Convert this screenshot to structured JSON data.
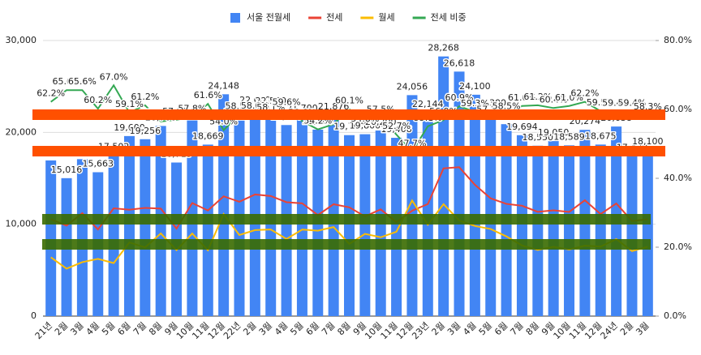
{
  "chart_data": {
    "type": "bar_line",
    "categories": [
      "21년",
      "2월",
      "3월",
      "4월",
      "5월",
      "6월",
      "7월",
      "8월",
      "9월",
      "10월",
      "11월",
      "12월",
      "22년",
      "2월",
      "3월",
      "4월",
      "5월",
      "6월",
      "7월",
      "8월",
      "9월",
      "10월",
      "11월",
      "12월",
      "23년",
      "2월",
      "3월",
      "4월",
      "5월",
      "6월",
      "7월",
      "8월",
      "9월",
      "10월",
      "11월",
      "12월",
      "24년",
      "2월",
      "3월"
    ],
    "series": [
      {
        "name": "서울 전월세",
        "type": "bar",
        "color": "#4285f4",
        "values": [
          16945,
          15016,
          17086,
          15663,
          17502,
          19600,
          19256,
          20700,
          16719,
          21299,
          18669,
          24148,
          21278,
          22600,
          22500,
          20800,
          21700,
          20300,
          21876,
          19700,
          19800,
          20200,
          19408,
          24056,
          22144,
          28268,
          26618,
          24100,
          22300,
          20896,
          19694,
          18550,
          19050,
          18589,
          20274,
          18675,
          20638,
          17430,
          18100
        ],
        "value_labels": [
          "16,945",
          "15,016",
          "17,086",
          "15,663",
          "17,502",
          "19,600",
          "19,256",
          "20,700",
          "16,719",
          "21,299",
          "18,669",
          "24,148",
          "21,278",
          "22,600",
          "22,500",
          "20,800",
          "21,700",
          "20,300",
          "21,876",
          "19,700",
          "19,800",
          "20,200",
          "19,408",
          "24,056",
          "22,144",
          "28,268",
          "26,618",
          "24,100",
          "22,300",
          "20,896",
          "19,694",
          "18,550",
          "19,050",
          "18,589",
          "20,274",
          "18,675",
          "20,638",
          "17,430",
          "18,100"
        ]
      },
      {
        "name": "전세",
        "type": "line",
        "color": "#ea4335",
        "values": [
          10540,
          9850,
          11210,
          9430,
          11730,
          11580,
          11780,
          11700,
          9530,
          12310,
          11500,
          13040,
          12450,
          13240,
          13070,
          12400,
          12280,
          11000,
          12180,
          11840,
          10850,
          11620,
          10230,
          11470,
          12200,
          16080,
          16210,
          14290,
          12820,
          12220,
          12010,
          11350,
          11510,
          11340,
          12610,
          11110,
          12260,
          10350,
          10550
        ]
      },
      {
        "name": "월세",
        "type": "line",
        "color": "#fbbc04",
        "values": [
          6405,
          5166,
          5876,
          6233,
          5772,
          8020,
          7476,
          9000,
          7189,
          8989,
          7169,
          11108,
          8828,
          9360,
          9430,
          8400,
          9420,
          9300,
          9696,
          7860,
          8950,
          8580,
          9178,
          12586,
          9944,
          12188,
          10408,
          9810,
          9480,
          8676,
          7684,
          7200,
          7540,
          7249,
          7664,
          7565,
          8378,
          7080,
          7550
        ]
      },
      {
        "name": "전세 비중",
        "type": "line",
        "axis": "y2",
        "color": "#34a853",
        "values": [
          62.2,
          65.6,
          65.6,
          60.2,
          67.0,
          59.1,
          61.2,
          56.5,
          57.0,
          57.8,
          61.6,
          54.0,
          58.5,
          58.6,
          58.1,
          59.6,
          56.6,
          54.2,
          55.7,
          60.1,
          54.8,
          57.5,
          52.7,
          47.7,
          55.1,
          56.9,
          60.9,
          59.3,
          57.5,
          58.5,
          61.0,
          61.2,
          60.4,
          61.0,
          62.2,
          59.5,
          59.4,
          59.4,
          58.3
        ],
        "value_labels": [
          "62.2%",
          "65.6%",
          "65.6%",
          "60.2%",
          "67.0%",
          "59.1%",
          "61.2%",
          "56.5%",
          "57.0%",
          "57.8%",
          "61.6%",
          "54.0%",
          "58.5%",
          "58.6%",
          "58.1%",
          "59.6%",
          "56.6%",
          "54.2%",
          "55.7%",
          "60.1%",
          "54.8%",
          "57.5%",
          "52.7%",
          "47.7%",
          "55.1%",
          "56.9%",
          "60.9%",
          "59.3%",
          "57.5%",
          "58.5%",
          "61.0%",
          "61.2%",
          "60.4%",
          "61.0%",
          "62.2%",
          "59.5%",
          "59.4%",
          "59.4%",
          "58.3%"
        ]
      }
    ],
    "ylim": [
      0,
      30000
    ],
    "yticks": [
      0,
      {
        "value": 10000,
        "label": "10,000"
      },
      {
        "value": 20000,
        "label": "20,000"
      },
      {
        "value": 30000,
        "label": "30,000"
      }
    ],
    "y2lim": [
      0,
      80
    ],
    "y2ticks": [
      {
        "value": 0,
        "label": "0.0%"
      },
      {
        "value": 20,
        "label": "20.0%"
      },
      {
        "value": 40,
        "label": "40.0%"
      },
      {
        "value": 60,
        "label": "60.0%"
      },
      {
        "value": 80,
        "label": "80.0%"
      }
    ],
    "grid": true,
    "legend": "top"
  }
}
